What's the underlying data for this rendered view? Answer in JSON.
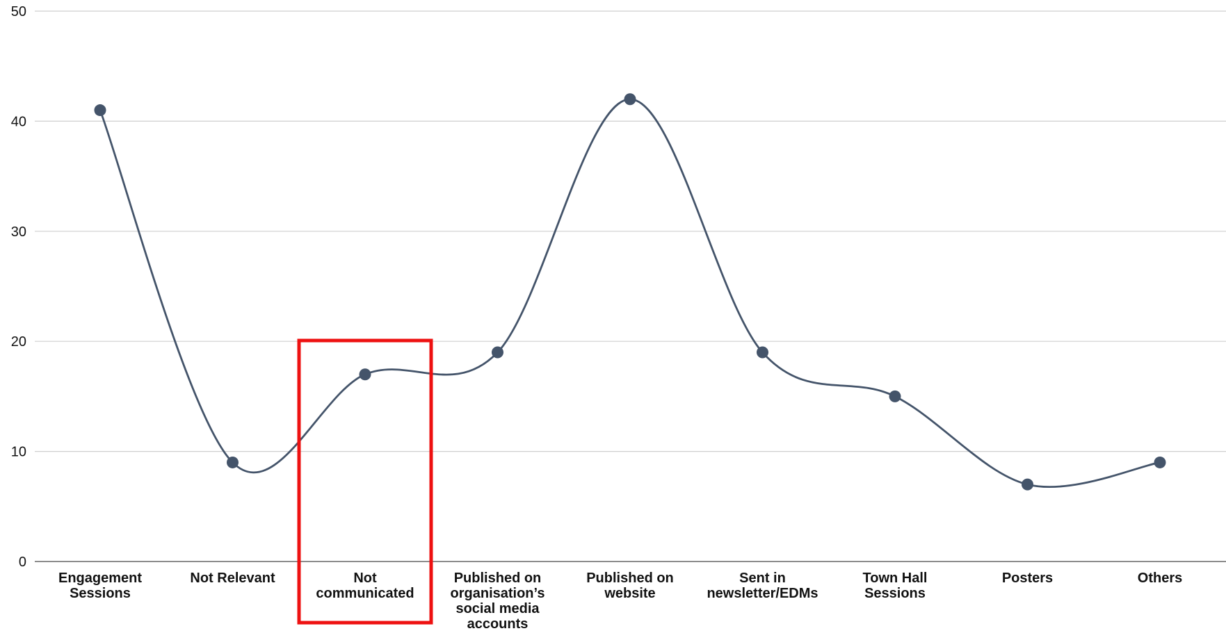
{
  "chart_data": {
    "type": "line",
    "smooth": true,
    "categories": [
      [
        "Engagement",
        "Sessions"
      ],
      [
        "Not Relevant"
      ],
      [
        "Not",
        "communicated"
      ],
      [
        "Published on",
        "organisation’s",
        "social media",
        "accounts"
      ],
      [
        "Published on",
        "website"
      ],
      [
        "Sent in",
        "newsletter/EDMs"
      ],
      [
        "Town Hall",
        "Sessions"
      ],
      [
        "Posters"
      ],
      [
        "Others"
      ]
    ],
    "series": [
      {
        "values": [
          41,
          9,
          17,
          19,
          42,
          19,
          15,
          7,
          9
        ]
      }
    ],
    "ylim": [
      0,
      50
    ],
    "yticks": [
      0,
      10,
      20,
      30,
      40,
      50
    ],
    "grid": true,
    "legend": "none",
    "highlight_category_index": 2,
    "colors": {
      "line": "#44546a",
      "highlight": "#ee1111",
      "grid": "#cfcfcf",
      "axis": "#666666"
    }
  }
}
